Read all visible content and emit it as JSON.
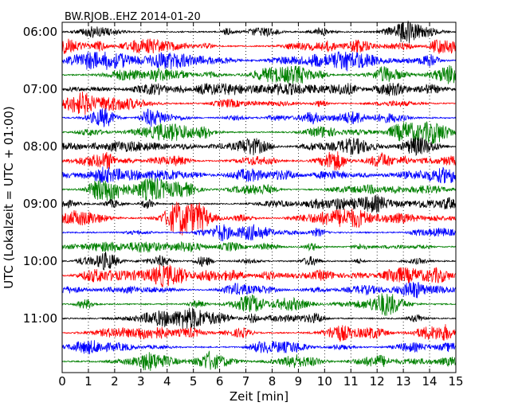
{
  "chart_data": {
    "type": "line",
    "title": "BW.RJOB..EHZ 2014-01-20",
    "xlabel": "Zeit  [min]",
    "ylabel": "UTC (Lokalzeit = UTC + 01:00)",
    "xlim": [
      0,
      15
    ],
    "x_ticks": [
      "0",
      "1",
      "2",
      "3",
      "4",
      "5",
      "6",
      "7",
      "8",
      "9",
      "10",
      "11",
      "12",
      "13",
      "14",
      "15"
    ],
    "y_ticks": [
      "06:00",
      "07:00",
      "08:00",
      "09:00",
      "10:00",
      "11:00"
    ],
    "traces_per_hour": 4,
    "trace_count": 24,
    "trace_colors": [
      "#000000",
      "#ff0000",
      "#0000ff",
      "#008000"
    ],
    "grid": "vertical-dotted"
  }
}
